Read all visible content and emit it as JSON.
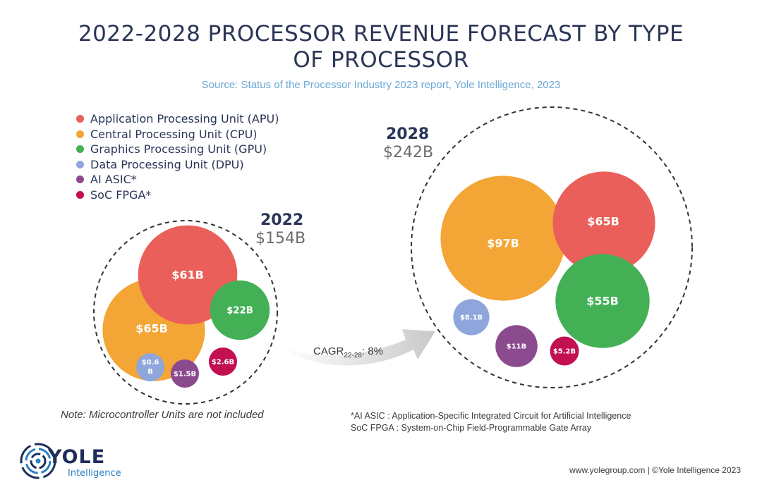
{
  "title_line1": "2022-2028 PROCESSOR REVENUE FORECAST BY TYPE",
  "title_line2": "OF PROCESSOR",
  "source": "Source: Status of the Processor Industry 2023 report, Yole Intelligence, 2023",
  "note": "Note: Microcontroller Units are not included",
  "footnote_line1": "*AI ASIC : Application-Specific Integrated Circuit for Artificial Intelligence",
  "footnote_line2": "SoC FPGA : System-on-Chip Field-Programmable Gate Array",
  "footer": "www.yolegroup.com | ©Yole Intelligence 2023",
  "logo": {
    "name": "YOLE",
    "sub": "Intelligence"
  },
  "cagr": {
    "prefix": "CAGR",
    "sub": "22-28",
    "suffix": ": 8%"
  },
  "colors": {
    "APU": "#ea5f5a",
    "CPU": "#f3a535",
    "GPU": "#44b055",
    "DPU": "#8ea6db",
    "AI_ASIC": "#8b4a8e",
    "SOC_FPGA": "#c21050"
  },
  "chart_data": {
    "type": "bubble",
    "title": "2022-2028 PROCESSOR REVENUE FORECAST BY TYPE OF PROCESSOR",
    "legend": [
      {
        "key": "APU",
        "label": "Application Processing Unit (APU)"
      },
      {
        "key": "CPU",
        "label": "Central Processing Unit (CPU)"
      },
      {
        "key": "GPU",
        "label": "Graphics Processing Unit (GPU)"
      },
      {
        "key": "DPU",
        "label": "Data Processing Unit (DPU)"
      },
      {
        "key": "AI_ASIC",
        "label": "AI ASIC*"
      },
      {
        "key": "SOC_FPGA",
        "label": "SoC FPGA*"
      }
    ],
    "groups": [
      {
        "year": "2022",
        "total_label": "$154B",
        "total": 154,
        "values": [
          {
            "key": "APU",
            "value": 61,
            "label": "$61B"
          },
          {
            "key": "CPU",
            "value": 65,
            "label": "$65B"
          },
          {
            "key": "GPU",
            "value": 22,
            "label": "$22B"
          },
          {
            "key": "DPU",
            "value": 0.6,
            "label": "$0.6 B"
          },
          {
            "key": "AI_ASIC",
            "value": 1.5,
            "label": "$1.5B"
          },
          {
            "key": "SOC_FPGA",
            "value": 2.6,
            "label": "$2.6B"
          }
        ]
      },
      {
        "year": "2028",
        "total_label": "$242B",
        "total": 242,
        "values": [
          {
            "key": "APU",
            "value": 65,
            "label": "$65B"
          },
          {
            "key": "CPU",
            "value": 97,
            "label": "$97B"
          },
          {
            "key": "GPU",
            "value": 55,
            "label": "$55B"
          },
          {
            "key": "DPU",
            "value": 8.1,
            "label": "$8.1B"
          },
          {
            "key": "AI_ASIC",
            "value": 11,
            "label": "$11B"
          },
          {
            "key": "SOC_FPGA",
            "value": 5.2,
            "label": "$5.2B"
          }
        ]
      }
    ],
    "cagr_2022_2028": "8%"
  }
}
